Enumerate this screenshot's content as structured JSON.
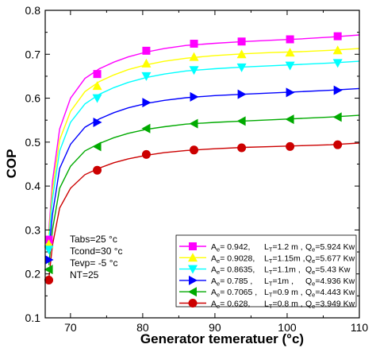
{
  "chart_data": {
    "type": "line",
    "xlabel": "Generator temeratuer (°c)",
    "ylabel": "COP",
    "xlim": [
      66.5,
      110
    ],
    "ylim": [
      0.1,
      0.8
    ],
    "xticks": [
      70,
      80,
      90,
      100,
      110
    ],
    "yticks": [
      0.1,
      0.2,
      0.3,
      0.4,
      0.5,
      0.6,
      0.7,
      0.8
    ],
    "xtick_labels": [
      "70",
      "80",
      "90",
      "100",
      "110"
    ],
    "ytick_labels": [
      "0.1",
      "0.2",
      "0.3",
      "0.4",
      "0.5",
      "0.6",
      "0.7",
      "0.8"
    ],
    "grid": false,
    "legend_position": "lower-right",
    "notes": [
      "Tabs=25 °c",
      "Tcond=30 °c",
      "Tevp= -5 °c",
      "NT=25"
    ],
    "series": [
      {
        "marker": "square",
        "color": "#ff00ff",
        "legend": {
          "a_val": "0.942,",
          "l_val": "=1.2 m ,",
          "q_val": "=5.924 Kw"
        },
        "x": [
          67,
          73.7,
          80.5,
          87.1,
          93.7,
          100.4,
          107
        ],
        "y": [
          0.278,
          0.655,
          0.708,
          0.724,
          0.729,
          0.734,
          0.741
        ],
        "curve": {
          "x": [
            67,
            67.5,
            68.5,
            70,
            72,
            74,
            76,
            78,
            80.5,
            83,
            86,
            90,
            94,
            98,
            102,
            106,
            110
          ],
          "y": [
            0.3,
            0.41,
            0.53,
            0.6,
            0.645,
            0.667,
            0.682,
            0.694,
            0.705,
            0.713,
            0.72,
            0.725,
            0.729,
            0.732,
            0.735,
            0.739,
            0.744
          ]
        }
      },
      {
        "marker": "triangle-up",
        "color": "#ffff00",
        "legend": {
          "a_val": "0.9028,",
          "l_val": "=1.15m ,",
          "q_val": "=5.677 Kw"
        },
        "x": [
          67,
          73.7,
          80.5,
          87.1,
          93.7,
          100.4,
          107
        ],
        "y": [
          0.268,
          0.628,
          0.679,
          0.694,
          0.7,
          0.704,
          0.709
        ],
        "curve": {
          "x": [
            67,
            67.5,
            68.5,
            70,
            72,
            74,
            76,
            78,
            80.5,
            83,
            86,
            90,
            94,
            98,
            102,
            106,
            110
          ],
          "y": [
            0.29,
            0.39,
            0.505,
            0.57,
            0.615,
            0.638,
            0.653,
            0.665,
            0.676,
            0.684,
            0.691,
            0.697,
            0.701,
            0.704,
            0.706,
            0.709,
            0.713
          ]
        }
      },
      {
        "marker": "triangle-down",
        "color": "#00ffff",
        "legend": {
          "a_val": "0.8635,",
          "l_val": "=1.1m ,",
          "q_val": "=5.43 Kw"
        },
        "x": [
          67,
          73.7,
          80.5,
          87.1,
          93.7,
          100.4,
          107
        ],
        "y": [
          0.255,
          0.6,
          0.65,
          0.664,
          0.67,
          0.674,
          0.68
        ],
        "curve": {
          "x": [
            67,
            67.5,
            68.5,
            70,
            72,
            74,
            76,
            78,
            80.5,
            83,
            86,
            90,
            94,
            98,
            102,
            106,
            110
          ],
          "y": [
            0.275,
            0.37,
            0.48,
            0.545,
            0.587,
            0.609,
            0.624,
            0.636,
            0.647,
            0.655,
            0.662,
            0.667,
            0.671,
            0.674,
            0.677,
            0.68,
            0.684
          ]
        }
      },
      {
        "marker": "triangle-right",
        "color": "#0000ff",
        "legend": {
          "a_val": "0.785 ,",
          "l_val": "=1m ,",
          "q_val": "=4.936 Kw"
        },
        "x": [
          67,
          73.7,
          80.5,
          87.1,
          93.7,
          100.4,
          107
        ],
        "y": [
          0.232,
          0.545,
          0.59,
          0.603,
          0.609,
          0.613,
          0.618
        ],
        "curve": {
          "x": [
            67,
            67.5,
            68.5,
            70,
            72,
            74,
            76,
            78,
            80.5,
            83,
            86,
            90,
            94,
            98,
            102,
            106,
            110
          ],
          "y": [
            0.25,
            0.335,
            0.44,
            0.495,
            0.534,
            0.553,
            0.567,
            0.578,
            0.588,
            0.595,
            0.601,
            0.606,
            0.609,
            0.612,
            0.615,
            0.618,
            0.622
          ]
        }
      },
      {
        "marker": "triangle-left",
        "color": "#00aa00",
        "legend": {
          "a_val": "0.7065 ,",
          "l_val": "=0.9 m ,",
          "q_val": "=4.443 Kw"
        },
        "x": [
          67,
          73.7,
          80.5,
          87.1,
          93.7,
          100.4,
          107
        ],
        "y": [
          0.21,
          0.49,
          0.531,
          0.542,
          0.548,
          0.552,
          0.557
        ],
        "curve": {
          "x": [
            67,
            67.5,
            68.5,
            70,
            72,
            74,
            76,
            78,
            80.5,
            83,
            86,
            90,
            94,
            98,
            102,
            106,
            110
          ],
          "y": [
            0.22,
            0.3,
            0.395,
            0.445,
            0.48,
            0.497,
            0.51,
            0.52,
            0.529,
            0.535,
            0.541,
            0.545,
            0.548,
            0.551,
            0.554,
            0.557,
            0.561
          ]
        }
      },
      {
        "marker": "circle",
        "color": "#cc0000",
        "legend": {
          "a_val": "0.628,",
          "l_val": "=0.8 m ,",
          "q_val": "=3.949 Kw"
        },
        "x": [
          67,
          73.7,
          80.5,
          87.1,
          93.7,
          100.4,
          107
        ],
        "y": [
          0.186,
          0.436,
          0.472,
          0.482,
          0.487,
          0.49,
          0.494
        ],
        "curve": {
          "x": [
            67,
            67.5,
            68.5,
            70,
            72,
            74,
            76,
            78,
            80.5,
            83,
            86,
            90,
            94,
            98,
            102,
            106,
            110
          ],
          "y": [
            0.19,
            0.265,
            0.35,
            0.395,
            0.426,
            0.441,
            0.453,
            0.462,
            0.47,
            0.476,
            0.481,
            0.485,
            0.488,
            0.49,
            0.492,
            0.494,
            0.498
          ]
        }
      }
    ]
  }
}
